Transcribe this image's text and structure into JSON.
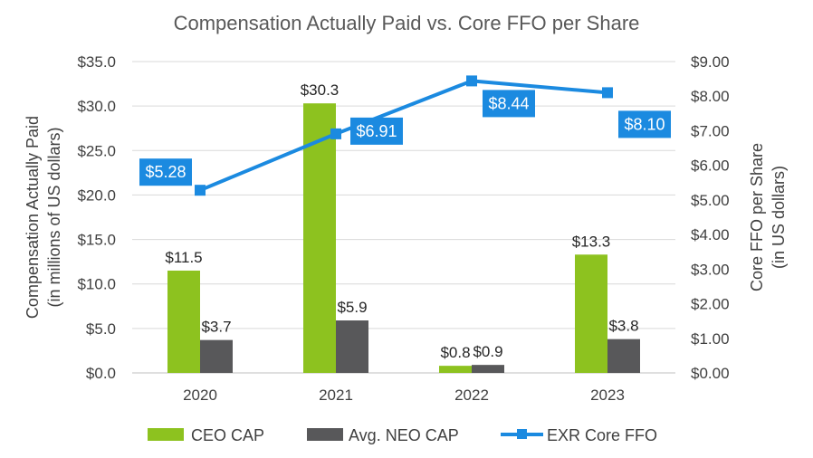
{
  "chart_data": {
    "type": "bar",
    "title": "Compensation Actually Paid vs. Core FFO per Share",
    "categories": [
      "2020",
      "2021",
      "2022",
      "2023"
    ],
    "ylabel": "Compensation Actually Paid",
    "ylabel_sub": "(in millions of US dollars)",
    "y2label": "Core FFO per Share",
    "y2label_sub": "(in US dollars)",
    "ylim": [
      0,
      35
    ],
    "y2lim": [
      0,
      9
    ],
    "y_ticks": [
      "$0.0",
      "$5.0",
      "$10.0",
      "$15.0",
      "$20.0",
      "$25.0",
      "$30.0",
      "$35.0"
    ],
    "y2_ticks": [
      "$0.00",
      "$1.00",
      "$2.00",
      "$3.00",
      "$4.00",
      "$5.00",
      "$6.00",
      "$7.00",
      "$8.00",
      "$9.00"
    ],
    "grid": true,
    "legend_position": "bottom",
    "series": [
      {
        "name": "CEO CAP",
        "type": "bar",
        "axis": "left",
        "color": "#8dc21f",
        "values": [
          11.5,
          30.3,
          0.8,
          13.3
        ],
        "labels": [
          "$11.5",
          "$30.3",
          "$0.8",
          "$13.3"
        ]
      },
      {
        "name": "Avg. NEO CAP",
        "type": "bar",
        "axis": "left",
        "color": "#58585a",
        "values": [
          3.7,
          5.9,
          0.9,
          3.8
        ],
        "labels": [
          "$3.7",
          "$5.9",
          "$0.9",
          "$3.8"
        ]
      },
      {
        "name": "EXR Core FFO",
        "type": "line",
        "axis": "right",
        "color": "#1b8ae0",
        "values": [
          5.28,
          6.91,
          8.44,
          8.1
        ],
        "labels": [
          "$5.28",
          "$6.91",
          "$8.44",
          "$8.10"
        ]
      }
    ]
  }
}
